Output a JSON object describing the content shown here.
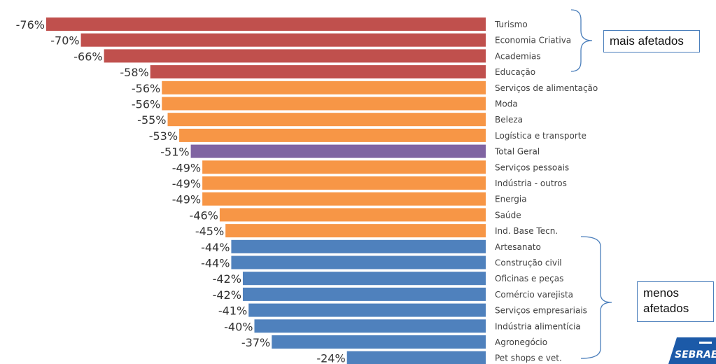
{
  "chart_data": {
    "type": "bar",
    "orientation": "horizontal",
    "categories": [
      "Turismo",
      "Economia Criativa",
      "Academias",
      "Educação",
      "Serviços de alimentação",
      "Moda",
      "Beleza",
      "Logística e transporte",
      "Total Geral",
      "Serviços pessoais",
      "Indústria - outros",
      "Energia",
      "Saúde",
      "Ind. Base Tecn.",
      "Artesanato",
      "Construção civil",
      "Oficinas e peças",
      "Comércio varejista",
      "Serviços empresariais",
      "Indústria alimentícia",
      "Agronegócio",
      "Pet shops e vet."
    ],
    "values": [
      -76,
      -70,
      -66,
      -58,
      -56,
      -56,
      -55,
      -53,
      -51,
      -49,
      -49,
      -49,
      -46,
      -45,
      -44,
      -44,
      -42,
      -42,
      -41,
      -40,
      -37,
      -24
    ],
    "value_labels": [
      "-76%",
      "-70%",
      "-66%",
      "-58%",
      "-56%",
      "-56%",
      "-55%",
      "-53%",
      "-51%",
      "-49%",
      "-49%",
      "-49%",
      "-46%",
      "-45%",
      "-44%",
      "-44%",
      "-42%",
      "-42%",
      "-41%",
      "-40%",
      "-37%",
      "-24%"
    ],
    "groups": [
      "red",
      "red",
      "red",
      "red",
      "orange",
      "orange",
      "orange",
      "orange",
      "purple",
      "orange",
      "orange",
      "orange",
      "orange",
      "orange",
      "blue",
      "blue",
      "blue",
      "blue",
      "blue",
      "blue",
      "blue",
      "blue"
    ],
    "colors": {
      "red": "#c0504d",
      "orange": "#f79646",
      "purple": "#8064a2",
      "blue": "#4f81bd"
    },
    "xlim": [
      -76,
      0
    ],
    "grid": false,
    "legend": "none"
  },
  "annotations": {
    "top_label": "mais afetados",
    "bottom_label_line1": "menos",
    "bottom_label_line2": "afetados",
    "bracket_color": "#4a7ebb"
  },
  "logo": {
    "text": "SEBRAE",
    "color": "#1c5aa8"
  }
}
